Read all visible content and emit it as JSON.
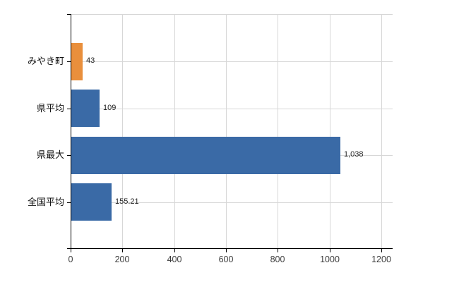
{
  "chart_data": {
    "type": "bar",
    "orientation": "horizontal",
    "title": "",
    "xlabel": "",
    "ylabel": "",
    "categories": [
      "みやき町",
      "県平均",
      "県最大",
      "全国平均"
    ],
    "values": [
      43,
      109,
      1038,
      155.21
    ],
    "value_labels": [
      "43",
      "109",
      "1,038",
      "155.21"
    ],
    "bar_color_keys": [
      "orange",
      "blue",
      "blue",
      "blue"
    ],
    "xlim": [
      0,
      1200
    ],
    "x_ticks": [
      0,
      200,
      400,
      600,
      800,
      1000,
      1200
    ],
    "x_tick_labels": [
      "0",
      "200",
      "400",
      "600",
      "800",
      "1000",
      "1200"
    ],
    "grid": true,
    "legend_position": "none"
  },
  "colors": {
    "orange": "#e98f3c",
    "blue": "#3a6aa6",
    "grid": "#d7d7d7",
    "axis": "#000000",
    "background": "#ffffff",
    "text": "#222222"
  }
}
